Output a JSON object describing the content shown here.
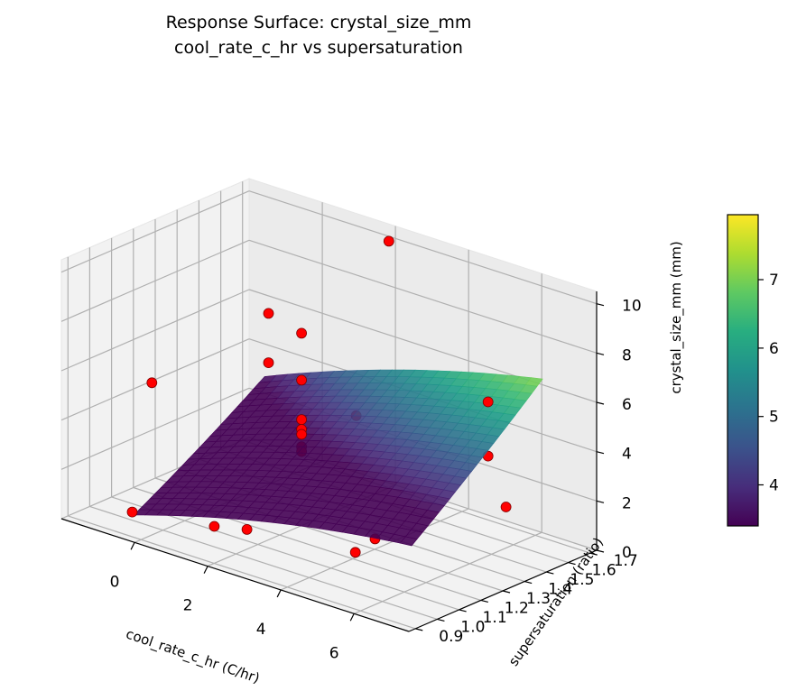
{
  "chart_data": {
    "type": "surface3d",
    "title": "Response Surface: crystal_size_mm",
    "subtitle": "cool_rate_c_hr vs supersaturation",
    "xlabel": "cool_rate_c_hr (C/hr)",
    "ylabel": "supersaturation (ratio)",
    "zlabel": "crystal_size_mm (mm)",
    "x_ticks": [
      "0",
      "2",
      "4",
      "6"
    ],
    "y_ticks": [
      "0.9",
      "1.0",
      "1.1",
      "1.2",
      "1.3",
      "1.4",
      "1.5",
      "1.6",
      "1.7"
    ],
    "z_ticks": [
      "0",
      "2",
      "4",
      "6",
      "8",
      "10"
    ],
    "xlim": [
      -2,
      7.5
    ],
    "ylim": [
      0.87,
      1.73
    ],
    "zlim": [
      0,
      10.5
    ],
    "surface": {
      "x_range": [
        -0.8,
        6.8
      ],
      "y_range": [
        1.0,
        1.6
      ],
      "colormap": "viridis",
      "value_range": [
        3.4,
        7.95
      ]
    },
    "points": [
      {
        "x": -0.6,
        "y": 0.96,
        "z": 0.6
      },
      {
        "x": 2.0,
        "y": 0.9,
        "z": 1.5
      },
      {
        "x": 5.5,
        "y": 0.96,
        "z": 1.9
      },
      {
        "x": -0.6,
        "y": 1.05,
        "z": 5.5
      },
      {
        "x": 2.0,
        "y": 1.05,
        "z": 0.8
      },
      {
        "x": 5.5,
        "y": 1.05,
        "z": 2.1
      },
      {
        "x": 2.0,
        "y": 1.55,
        "z": 3.5
      },
      {
        "x": 2.0,
        "y": 1.3,
        "z": 7.8
      },
      {
        "x": 2.0,
        "y": 1.3,
        "z": 5.9
      },
      {
        "x": 2.0,
        "y": 1.3,
        "z": 4.3
      },
      {
        "x": 2.0,
        "y": 1.3,
        "z": 3.9
      },
      {
        "x": 2.0,
        "y": 1.3,
        "z": 3.7
      },
      {
        "x": 2.0,
        "y": 1.3,
        "z": 3.2
      },
      {
        "x": 2.0,
        "y": 1.3,
        "z": 3.0
      },
      {
        "x": 0.5,
        "y": 1.4,
        "z": 7.5
      },
      {
        "x": 0.5,
        "y": 1.4,
        "z": 5.5
      },
      {
        "x": 6.5,
        "y": 1.4,
        "z": 6.8
      },
      {
        "x": 6.5,
        "y": 1.4,
        "z": 4.6
      },
      {
        "x": 5.5,
        "y": 1.65,
        "z": 1.1
      },
      {
        "x": 2.0,
        "y": 1.7,
        "z": 10.0
      }
    ],
    "colorbar": {
      "ticks": [
        "4",
        "5",
        "6",
        "7"
      ],
      "values": [
        4,
        5,
        6,
        7
      ]
    },
    "grid": true,
    "colorbar_position": "right"
  }
}
